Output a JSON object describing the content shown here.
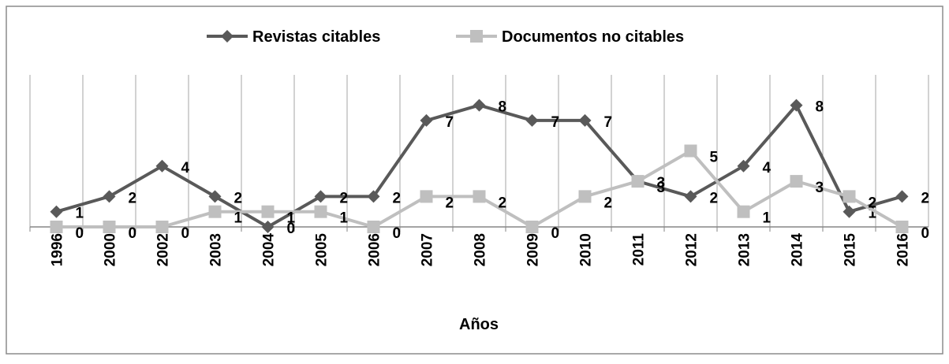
{
  "chart_data": {
    "type": "line",
    "x_label": "Años",
    "categories": [
      "1996",
      "2000",
      "2002",
      "2003",
      "2004",
      "2005",
      "2006",
      "2007",
      "2008",
      "2009",
      "2010",
      "2011",
      "2012",
      "2013",
      "2014",
      "2015",
      "2016"
    ],
    "series": [
      {
        "name": "Revistas citables",
        "color": "#595959",
        "marker": "diamond",
        "values": [
          1,
          2,
          4,
          2,
          0,
          2,
          2,
          7,
          8,
          7,
          7,
          3,
          2,
          4,
          8,
          1,
          2
        ]
      },
      {
        "name": "Documentos no citables",
        "color": "#bfbfbf",
        "marker": "square",
        "values": [
          0,
          0,
          0,
          1,
          1,
          1,
          0,
          2,
          2,
          0,
          2,
          3,
          5,
          1,
          3,
          2,
          0
        ]
      }
    ],
    "ylim": [
      0,
      10
    ],
    "legend": "top",
    "grid": "vertical"
  }
}
